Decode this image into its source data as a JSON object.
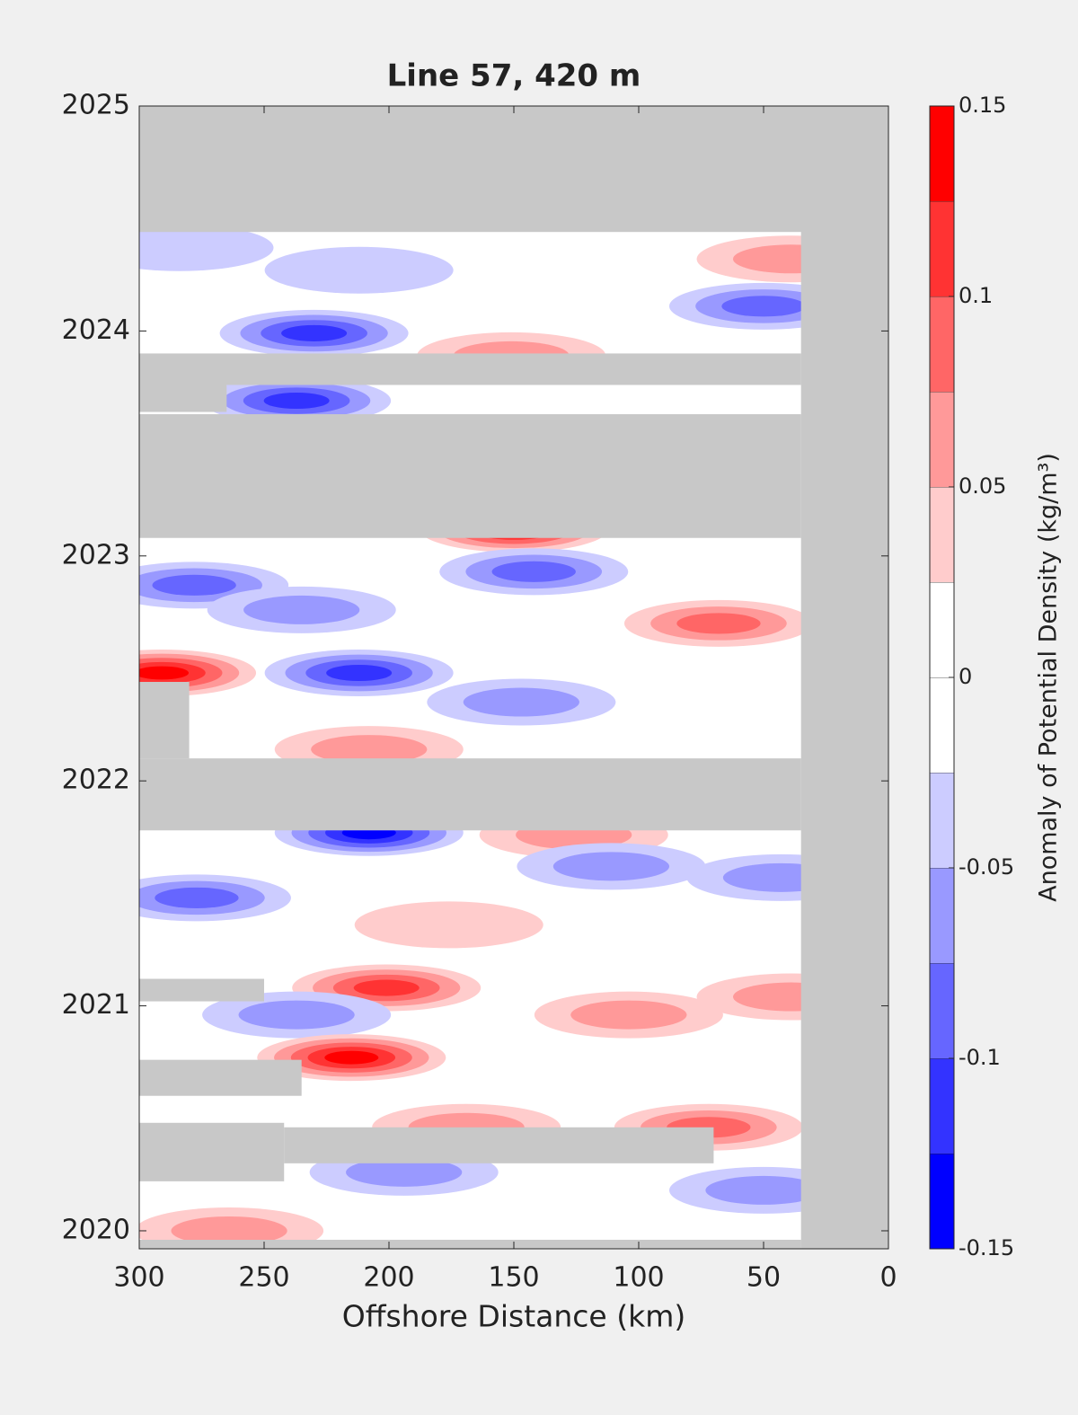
{
  "chart_data": {
    "type": "contour",
    "title": "Line 57, 420 m",
    "xlabel": "Offshore Distance (km)",
    "colorbar_label": "Anomaly of Potential Density (kg/m³)",
    "xlim": [
      300,
      0
    ],
    "xticks": [
      300,
      250,
      200,
      150,
      100,
      50,
      0
    ],
    "ylim": [
      2019.92,
      2025
    ],
    "yticks": [
      2020,
      2021,
      2022,
      2023,
      2024,
      2025
    ],
    "clim": [
      -0.15,
      0.15
    ],
    "cticks": [
      -0.15,
      -0.1,
      -0.05,
      0,
      0.05,
      0.1,
      0.15
    ],
    "colors": [
      "#0000ff",
      "#3333ff",
      "#6666ff",
      "#9999ff",
      "#ccccff",
      "#ffffff",
      "#ffffff",
      "#ffcccc",
      "#ff9999",
      "#ff6666",
      "#ff3333",
      "#ff0000"
    ],
    "no_data_color": "#c8c8c8",
    "features": [
      {
        "x": 230,
        "y": 2023.99,
        "value": -0.1
      },
      {
        "x": 237,
        "y": 2023.69,
        "value": -0.11
      },
      {
        "x": 150,
        "y": 2023.12,
        "value": 0.13
      },
      {
        "x": 142,
        "y": 2022.93,
        "value": -0.09
      },
      {
        "x": 278,
        "y": 2022.87,
        "value": -0.08
      },
      {
        "x": 235,
        "y": 2022.76,
        "value": -0.07
      },
      {
        "x": 68,
        "y": 2022.7,
        "value": 0.08
      },
      {
        "x": 291,
        "y": 2022.48,
        "value": 0.14
      },
      {
        "x": 212,
        "y": 2022.48,
        "value": -0.1
      },
      {
        "x": 147,
        "y": 2022.35,
        "value": -0.07
      },
      {
        "x": 208,
        "y": 2022.14,
        "value": 0.05
      },
      {
        "x": 208,
        "y": 2021.77,
        "value": -0.13
      },
      {
        "x": 126,
        "y": 2021.76,
        "value": 0.06
      },
      {
        "x": 111,
        "y": 2021.62,
        "value": -0.07
      },
      {
        "x": 277,
        "y": 2021.48,
        "value": -0.09
      },
      {
        "x": 43,
        "y": 2021.57,
        "value": -0.07
      },
      {
        "x": 176,
        "y": 2021.36,
        "value": 0.04
      },
      {
        "x": 201,
        "y": 2021.08,
        "value": 0.1
      },
      {
        "x": 104,
        "y": 2020.96,
        "value": 0.05
      },
      {
        "x": 39,
        "y": 2021.04,
        "value": 0.06
      },
      {
        "x": 237,
        "y": 2020.96,
        "value": -0.06
      },
      {
        "x": 215,
        "y": 2020.77,
        "value": 0.15
      },
      {
        "x": 169,
        "y": 2020.46,
        "value": 0.07
      },
      {
        "x": 72,
        "y": 2020.46,
        "value": 0.09
      },
      {
        "x": 194,
        "y": 2020.26,
        "value": -0.07
      },
      {
        "x": 50,
        "y": 2020.18,
        "value": -0.07
      },
      {
        "x": 264,
        "y": 2020,
        "value": 0.05
      },
      {
        "x": 39,
        "y": 2024.32,
        "value": 0.07
      },
      {
        "x": 284,
        "y": 2024.37,
        "value": -0.05
      },
      {
        "x": 212,
        "y": 2024.27,
        "value": -0.05
      },
      {
        "x": 50,
        "y": 2024.11,
        "value": -0.08
      },
      {
        "x": 151,
        "y": 2023.89,
        "value": 0.06
      }
    ],
    "no_data": [
      {
        "xlim": [
          0,
          300
        ],
        "ylim": [
          2024.44,
          2025
        ]
      },
      {
        "xlim": [
          0,
          35
        ],
        "ylim": [
          2019.92,
          2025
        ]
      },
      {
        "xlim": [
          35,
          300
        ],
        "ylim": [
          2023.76,
          2023.9
        ]
      },
      {
        "xlim": [
          265,
          300
        ],
        "ylim": [
          2023.64,
          2023.76
        ]
      },
      {
        "xlim": [
          35,
          300
        ],
        "ylim": [
          2023.08,
          2023.63
        ]
      },
      {
        "xlim": [
          35,
          300
        ],
        "ylim": [
          2021.78,
          2022.1
        ]
      },
      {
        "xlim": [
          280,
          300
        ],
        "ylim": [
          2022.1,
          2022.44
        ]
      },
      {
        "xlim": [
          250,
          300
        ],
        "ylim": [
          2021.02,
          2021.12
        ]
      },
      {
        "xlim": [
          235,
          300
        ],
        "ylim": [
          2020.6,
          2020.76
        ]
      },
      {
        "xlim": [
          242,
          300
        ],
        "ylim": [
          2020.22,
          2020.48
        ]
      },
      {
        "xlim": [
          70,
          242
        ],
        "ylim": [
          2020.3,
          2020.46
        ]
      },
      {
        "xlim": [
          35,
          300
        ],
        "ylim": [
          2019.92,
          2019.96
        ]
      }
    ]
  }
}
